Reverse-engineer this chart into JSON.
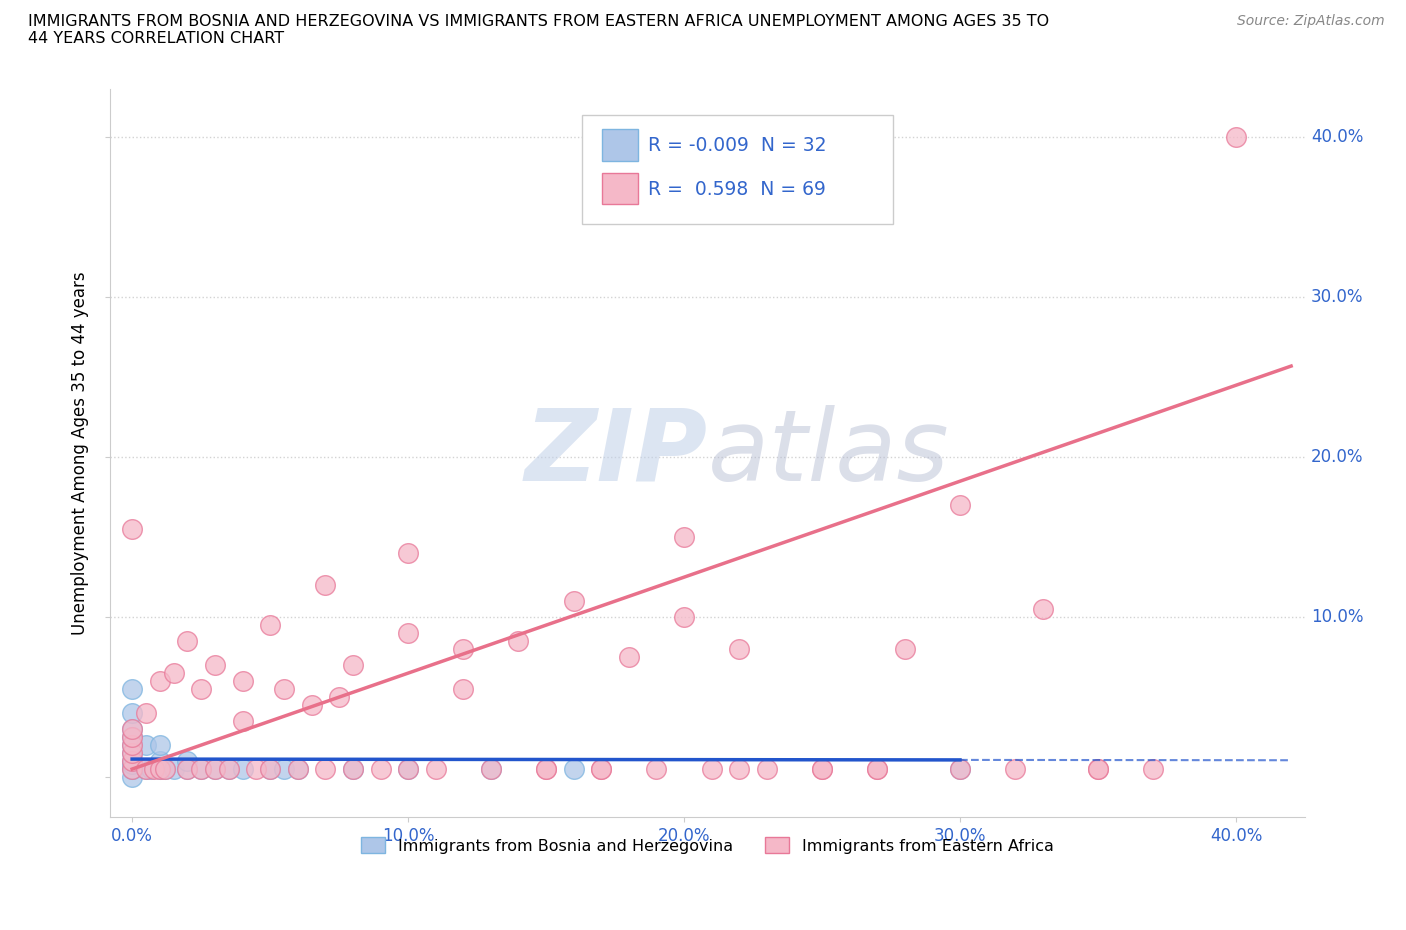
{
  "title": "IMMIGRANTS FROM BOSNIA AND HERZEGOVINA VS IMMIGRANTS FROM EASTERN AFRICA UNEMPLOYMENT AMONG AGES 35 TO\n44 YEARS CORRELATION CHART",
  "source": "Source: ZipAtlas.com",
  "ylabel": "Unemployment Among Ages 35 to 44 years",
  "legend_label1": "Immigrants from Bosnia and Herzegovina",
  "legend_label2": "Immigrants from Eastern Africa",
  "R1": -0.009,
  "N1": 32,
  "R2": 0.598,
  "N2": 69,
  "color_blue_fill": "#AEC6E8",
  "color_blue_edge": "#7EB5E0",
  "color_pink_fill": "#F5B8C8",
  "color_pink_edge": "#E87898",
  "color_trend_blue": "#2255CC",
  "color_trend_pink": "#E8708A",
  "watermark_color": "#C8D8F0",
  "watermark_color2": "#C8C8D8",
  "xlim": [
    -0.008,
    0.425
  ],
  "ylim": [
    -0.025,
    0.43
  ],
  "xticks": [
    0.0,
    0.1,
    0.2,
    0.3,
    0.4
  ],
  "yticks": [
    0.0,
    0.1,
    0.2,
    0.3,
    0.4
  ],
  "xticklabels": [
    "0.0%",
    "10.0%",
    "20.0%",
    "30.0%",
    "40.0%"
  ],
  "right_yticklabels": [
    "40.0%",
    "30.0%",
    "20.0%",
    "10.0%"
  ],
  "blue_x": [
    0.0,
    0.0,
    0.0,
    0.0,
    0.0,
    0.0,
    0.0,
    0.0,
    0.0,
    0.0,
    0.005,
    0.005,
    0.007,
    0.01,
    0.01,
    0.01,
    0.012,
    0.015,
    0.02,
    0.02,
    0.025,
    0.03,
    0.035,
    0.04,
    0.05,
    0.055,
    0.06,
    0.08,
    0.1,
    0.13,
    0.16,
    0.3
  ],
  "blue_y": [
    0.0,
    0.005,
    0.008,
    0.01,
    0.015,
    0.02,
    0.025,
    0.03,
    0.04,
    0.055,
    0.005,
    0.02,
    0.005,
    0.005,
    0.01,
    0.02,
    0.005,
    0.005,
    0.005,
    0.01,
    0.005,
    0.005,
    0.005,
    0.005,
    0.005,
    0.005,
    0.005,
    0.005,
    0.005,
    0.005,
    0.005,
    0.005
  ],
  "pink_x": [
    0.0,
    0.0,
    0.0,
    0.0,
    0.0,
    0.0,
    0.0,
    0.005,
    0.005,
    0.008,
    0.01,
    0.01,
    0.012,
    0.015,
    0.02,
    0.02,
    0.025,
    0.025,
    0.03,
    0.03,
    0.035,
    0.04,
    0.04,
    0.045,
    0.05,
    0.055,
    0.06,
    0.065,
    0.07,
    0.075,
    0.08,
    0.09,
    0.1,
    0.1,
    0.11,
    0.12,
    0.13,
    0.14,
    0.15,
    0.16,
    0.17,
    0.18,
    0.19,
    0.2,
    0.21,
    0.22,
    0.23,
    0.25,
    0.27,
    0.28,
    0.3,
    0.32,
    0.33,
    0.35,
    0.37,
    0.4,
    0.05,
    0.08,
    0.1,
    0.15,
    0.2,
    0.25,
    0.3,
    0.35,
    0.07,
    0.12,
    0.17,
    0.22,
    0.27
  ],
  "pink_y": [
    0.005,
    0.01,
    0.015,
    0.02,
    0.025,
    0.155,
    0.03,
    0.005,
    0.04,
    0.005,
    0.005,
    0.06,
    0.005,
    0.065,
    0.005,
    0.085,
    0.005,
    0.055,
    0.005,
    0.07,
    0.005,
    0.035,
    0.06,
    0.005,
    0.005,
    0.055,
    0.005,
    0.045,
    0.005,
    0.05,
    0.005,
    0.005,
    0.005,
    0.09,
    0.005,
    0.055,
    0.005,
    0.085,
    0.005,
    0.11,
    0.005,
    0.075,
    0.005,
    0.1,
    0.005,
    0.08,
    0.005,
    0.005,
    0.005,
    0.08,
    0.005,
    0.005,
    0.105,
    0.005,
    0.005,
    0.4,
    0.095,
    0.07,
    0.14,
    0.005,
    0.15,
    0.005,
    0.17,
    0.005,
    0.12,
    0.08,
    0.005,
    0.005,
    0.005
  ]
}
